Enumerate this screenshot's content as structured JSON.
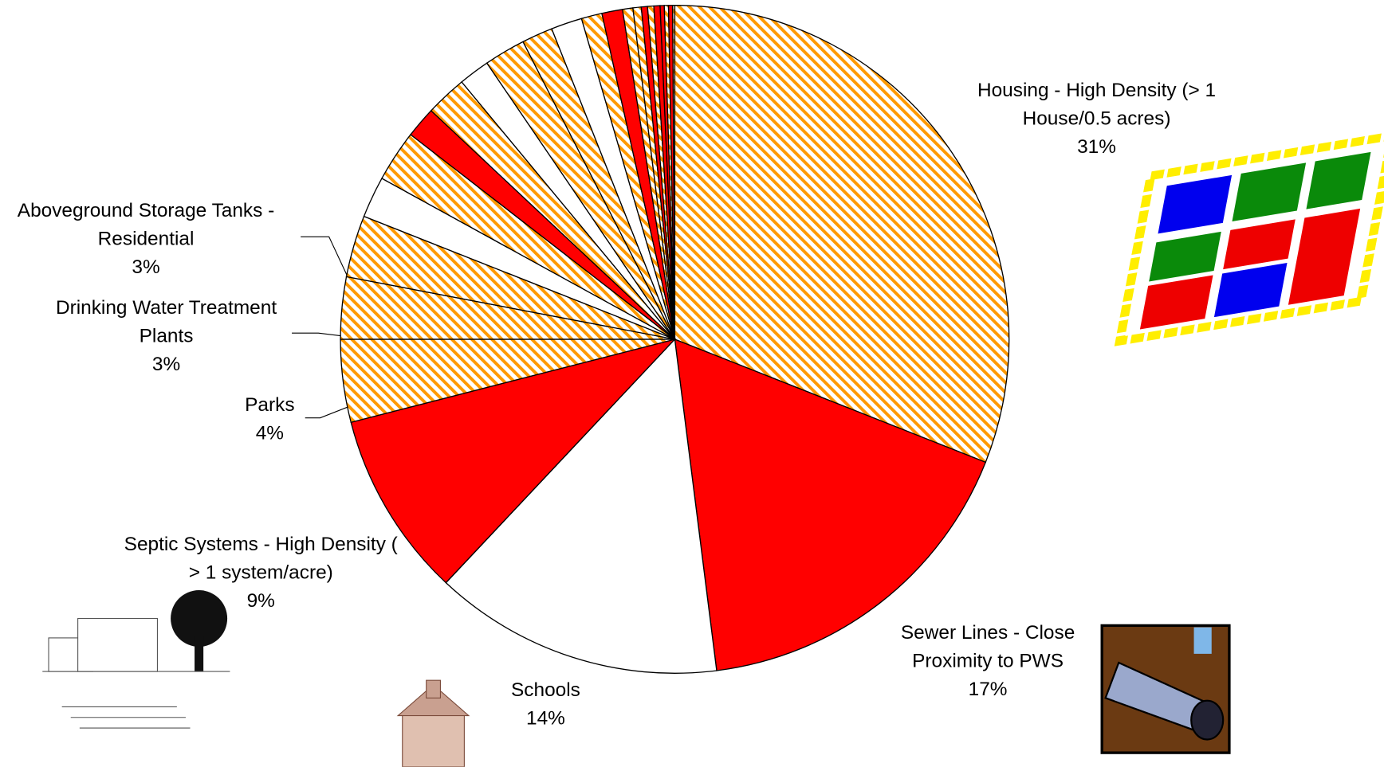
{
  "chart_data": {
    "type": "pie",
    "categories": [
      "Housing - High Density (> 1 House/0.5 acres)",
      "Sewer Lines - Close Proximity to PWS",
      "Schools",
      "Septic Systems - High Density ( > 1 system/acre)",
      "Parks",
      "Drinking Water Treatment Plants",
      "Aboveground Storage Tanks - Residential",
      null,
      null,
      null,
      null,
      null,
      null,
      null,
      null,
      null,
      null,
      null,
      null,
      null,
      null,
      null,
      null,
      null,
      null,
      null
    ],
    "values": [
      31,
      17,
      14,
      9,
      4,
      3,
      3,
      2,
      2.5,
      1.5,
      2,
      1.5,
      2,
      1.5,
      1.5,
      1,
      1,
      0.5,
      0.4,
      0.3,
      0.3,
      0.3,
      0.2,
      0.2,
      0.2,
      0.1
    ],
    "value_labels": [
      "31%",
      "17%",
      "14%",
      "9%",
      "4%",
      "3%",
      "3%",
      null,
      null,
      null,
      null,
      null,
      null,
      null,
      null,
      null,
      null,
      null,
      null,
      null,
      null,
      null,
      null,
      null,
      null,
      null
    ],
    "colors": [
      "#FF9900",
      "#FF0000",
      "#FFFFFF",
      "#FF0000",
      "#FF9900",
      "#FF9900",
      "#FF9900",
      "#FFFFFF",
      "#FF9900",
      "#FF0000",
      "#FF9900",
      "#FFFFFF",
      "#FF9900",
      "#FF9900",
      "#FFFFFF",
      "#FF9900",
      "#FF0000",
      "#FF9900",
      "#FF9900",
      "#FF0000",
      "#FF9900",
      "#FF0000",
      "#FF0000",
      "#FF9900",
      "#FF0000",
      "#FF9900"
    ],
    "hatched_colors": [
      "#FF9900"
    ]
  }
}
